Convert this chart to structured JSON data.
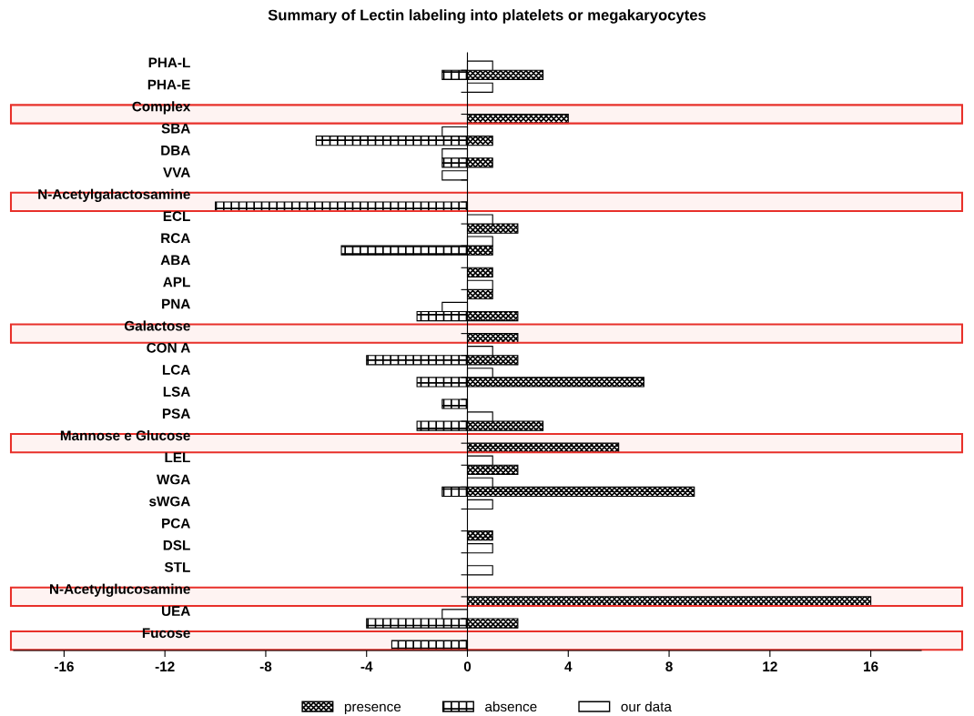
{
  "chart_data": {
    "type": "bar",
    "orientation": "horizontal",
    "title": "Summary of Lectin labeling into platelets or megakaryocytes",
    "categories": [
      "PHA-L",
      "PHA-E",
      "Complex",
      "SBA",
      "DBA",
      "VVA",
      "N-Acetylgalactosamine",
      "ECL",
      "RCA",
      "ABA",
      "APL",
      "PNA",
      "Galactose",
      "CON A",
      "LCA",
      "LSA",
      "PSA",
      "Mannose e Glucose",
      "LEL",
      "WGA",
      "sWGA",
      "PCA",
      "DSL",
      "STL",
      "N-Acetylglucosamine",
      "UEA",
      "Fucose"
    ],
    "series": [
      {
        "name": "presence",
        "color": "#000000",
        "values": [
          3,
          null,
          4,
          1,
          1,
          null,
          null,
          2,
          1,
          1,
          1,
          2,
          2,
          2,
          7,
          null,
          3,
          6,
          2,
          9,
          null,
          1,
          null,
          null,
          16,
          2,
          null
        ]
      },
      {
        "name": "absence",
        "color": "#000000",
        "values": [
          -1,
          null,
          null,
          -6,
          -1,
          null,
          -10,
          null,
          -5,
          null,
          null,
          -2,
          null,
          -4,
          -2,
          -1,
          -2,
          null,
          null,
          -1,
          null,
          null,
          null,
          null,
          null,
          -4,
          -3
        ]
      },
      {
        "name": "our data",
        "color": "#000000",
        "values": [
          1,
          1,
          null,
          -1,
          -1,
          -1,
          null,
          1,
          1,
          null,
          1,
          -1,
          null,
          1,
          1,
          null,
          1,
          null,
          1,
          1,
          1,
          null,
          1,
          1,
          null,
          -1,
          null
        ]
      }
    ],
    "xlim": [
      -18,
      18
    ],
    "xticks": [
      -16,
      -12,
      -8,
      -4,
      0,
      4,
      8,
      12,
      16
    ],
    "bands": [
      {
        "axis": "y",
        "from": "Complex",
        "to": "Complex",
        "color": "#e8302a"
      },
      {
        "axis": "y",
        "from": "N-Acetylgalactosamine",
        "to": "N-Acetylgalactosamine",
        "color": "#e8302a"
      },
      {
        "axis": "y",
        "from": "Galactose",
        "to": "Galactose",
        "color": "#e8302a"
      },
      {
        "axis": "y",
        "from": "Mannose e Glucose",
        "to": "Mannose e Glucose",
        "color": "#e8302a"
      },
      {
        "axis": "y",
        "from": "N-Acetylglucosamine",
        "to": "N-Acetylglucosamine",
        "color": "#e8302a"
      },
      {
        "axis": "y",
        "from": "Fucose",
        "to": "Fucose",
        "color": "#e8302a"
      }
    ],
    "legend": "bottom"
  }
}
